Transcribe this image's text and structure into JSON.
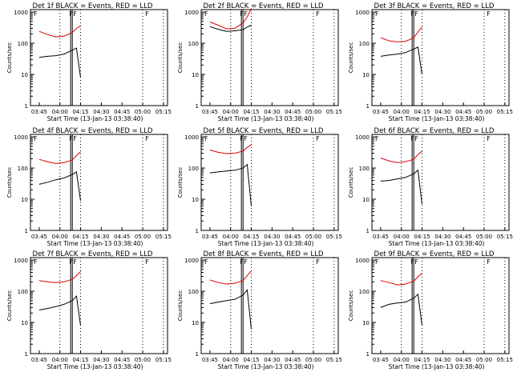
{
  "colors": {
    "events": "#000000",
    "lld": "#e00000",
    "axis": "#000000"
  },
  "shared": {
    "ylabel": "Counts/sec",
    "xlabel": "Start Time (13-Jan-13 03:38:40)",
    "xticks": [
      "03:45",
      "04:00",
      "04:15",
      "04:30",
      "04:45",
      "05:00",
      "05:15"
    ],
    "yticks": [
      "1",
      "10",
      "100",
      "1000"
    ],
    "markers": [
      "F",
      "F",
      "F",
      "F"
    ]
  },
  "chart_data": [
    {
      "type": "line",
      "title": "Det 1f BLACK = Events, RED = LLD",
      "xlim": [
        3.6444,
        5.3
      ],
      "ylim": [
        1,
        1200
      ],
      "yscale": "log",
      "series": [
        {
          "name": "Events",
          "color": "#000000",
          "x": [
            3.75,
            3.85,
            3.95,
            4.05,
            4.15,
            4.2,
            4.25
          ],
          "values": [
            35,
            38,
            40,
            45,
            60,
            70,
            8
          ]
        },
        {
          "name": "LLD",
          "color": "#e00000",
          "x": [
            3.75,
            3.85,
            3.95,
            4.05,
            4.15,
            4.2,
            4.25
          ],
          "values": [
            240,
            190,
            160,
            170,
            220,
            300,
            360
          ]
        }
      ]
    },
    {
      "type": "line",
      "title": "Det 2f BLACK = Events, RED = LLD",
      "xlim": [
        3.6444,
        5.3
      ],
      "ylim": [
        1,
        1200
      ],
      "yscale": "log",
      "series": [
        {
          "name": "Events",
          "color": "#000000",
          "x": [
            3.75,
            3.85,
            3.95,
            4.05,
            4.15,
            4.2,
            4.25
          ],
          "values": [
            340,
            280,
            240,
            250,
            270,
            330,
            380
          ]
        },
        {
          "name": "LLD",
          "color": "#e00000",
          "x": [
            3.75,
            3.85,
            3.95,
            4.05,
            4.15,
            4.2,
            4.25
          ],
          "values": [
            480,
            380,
            290,
            300,
            450,
            700,
            1300
          ]
        }
      ]
    },
    {
      "type": "line",
      "title": "Det 3f BLACK = Events, RED = LLD",
      "xlim": [
        3.6444,
        5.3
      ],
      "ylim": [
        1,
        1200
      ],
      "yscale": "log",
      "series": [
        {
          "name": "Events",
          "color": "#000000",
          "x": [
            3.75,
            3.85,
            3.95,
            4.05,
            4.15,
            4.2,
            4.25
          ],
          "values": [
            38,
            42,
            45,
            50,
            65,
            75,
            10
          ]
        },
        {
          "name": "LLD",
          "color": "#e00000",
          "x": [
            3.75,
            3.85,
            3.95,
            4.05,
            4.15,
            4.2,
            4.25
          ],
          "values": [
            150,
            120,
            110,
            115,
            150,
            230,
            330
          ]
        }
      ]
    },
    {
      "type": "line",
      "title": "Det 4f BLACK = Events, RED = LLD",
      "xlim": [
        3.6444,
        5.3
      ],
      "ylim": [
        1,
        1200
      ],
      "yscale": "log",
      "series": [
        {
          "name": "Events",
          "color": "#000000",
          "x": [
            3.75,
            3.85,
            3.95,
            4.05,
            4.15,
            4.2,
            4.25
          ],
          "values": [
            30,
            35,
            42,
            48,
            62,
            75,
            9
          ]
        },
        {
          "name": "LLD",
          "color": "#e00000",
          "x": [
            3.75,
            3.85,
            3.95,
            4.05,
            4.15,
            4.2,
            4.25
          ],
          "values": [
            190,
            160,
            140,
            150,
            180,
            250,
            330
          ]
        }
      ]
    },
    {
      "type": "line",
      "title": "Det 5f BLACK = Events, RED = LLD",
      "xlim": [
        3.6444,
        5.3
      ],
      "ylim": [
        1,
        1200
      ],
      "yscale": "log",
      "series": [
        {
          "name": "Events",
          "color": "#000000",
          "x": [
            3.75,
            3.85,
            3.95,
            4.05,
            4.15,
            4.2,
            4.25
          ],
          "values": [
            70,
            75,
            80,
            85,
            100,
            130,
            6
          ]
        },
        {
          "name": "LLD",
          "color": "#e00000",
          "x": [
            3.75,
            3.85,
            3.95,
            4.05,
            4.15,
            4.2,
            4.25
          ],
          "values": [
            380,
            320,
            290,
            300,
            350,
            460,
            560
          ]
        }
      ]
    },
    {
      "type": "line",
      "title": "Det 6f BLACK = Events, RED = LLD",
      "xlim": [
        3.6444,
        5.3
      ],
      "ylim": [
        1,
        1200
      ],
      "yscale": "log",
      "series": [
        {
          "name": "Events",
          "color": "#000000",
          "x": [
            3.75,
            3.85,
            3.95,
            4.05,
            4.15,
            4.2,
            4.25
          ],
          "values": [
            38,
            40,
            45,
            50,
            65,
            85,
            7
          ]
        },
        {
          "name": "LLD",
          "color": "#e00000",
          "x": [
            3.75,
            3.85,
            3.95,
            4.05,
            4.15,
            4.2,
            4.25
          ],
          "values": [
            210,
            170,
            150,
            160,
            190,
            270,
            350
          ]
        }
      ]
    },
    {
      "type": "line",
      "title": "Det 7f BLACK = Events, RED = LLD",
      "xlim": [
        3.6444,
        5.3
      ],
      "ylim": [
        1,
        1200
      ],
      "yscale": "log",
      "series": [
        {
          "name": "Events",
          "color": "#000000",
          "x": [
            3.75,
            3.85,
            3.95,
            4.05,
            4.15,
            4.2,
            4.25
          ],
          "values": [
            25,
            28,
            32,
            38,
            50,
            70,
            8
          ]
        },
        {
          "name": "LLD",
          "color": "#e00000",
          "x": [
            3.75,
            3.85,
            3.95,
            4.05,
            4.15,
            4.2,
            4.25
          ],
          "values": [
            220,
            200,
            190,
            200,
            240,
            320,
            430
          ]
        }
      ]
    },
    {
      "type": "line",
      "title": "Det 8f BLACK = Events, RED = LLD",
      "xlim": [
        3.6444,
        5.3
      ],
      "ylim": [
        1,
        1200
      ],
      "yscale": "log",
      "series": [
        {
          "name": "Events",
          "color": "#000000",
          "x": [
            3.75,
            3.85,
            3.95,
            4.05,
            4.15,
            4.2,
            4.25
          ],
          "values": [
            40,
            45,
            50,
            55,
            75,
            110,
            6
          ]
        },
        {
          "name": "LLD",
          "color": "#e00000",
          "x": [
            3.75,
            3.85,
            3.95,
            4.05,
            4.15,
            4.2,
            4.25
          ],
          "values": [
            230,
            190,
            170,
            180,
            220,
            320,
            450
          ]
        }
      ]
    },
    {
      "type": "line",
      "title": "Det 9f BLACK = Events, RED = LLD",
      "xlim": [
        3.6444,
        5.3
      ],
      "ylim": [
        1,
        1200
      ],
      "yscale": "log",
      "series": [
        {
          "name": "Events",
          "color": "#000000",
          "x": [
            3.75,
            3.85,
            3.95,
            4.05,
            4.15,
            4.2,
            4.25
          ],
          "values": [
            30,
            38,
            42,
            45,
            60,
            80,
            8
          ]
        },
        {
          "name": "LLD",
          "color": "#e00000",
          "x": [
            3.75,
            3.85,
            3.95,
            4.05,
            4.15,
            4.2,
            4.25
          ],
          "values": [
            220,
            190,
            160,
            170,
            210,
            290,
            380
          ]
        }
      ]
    }
  ]
}
